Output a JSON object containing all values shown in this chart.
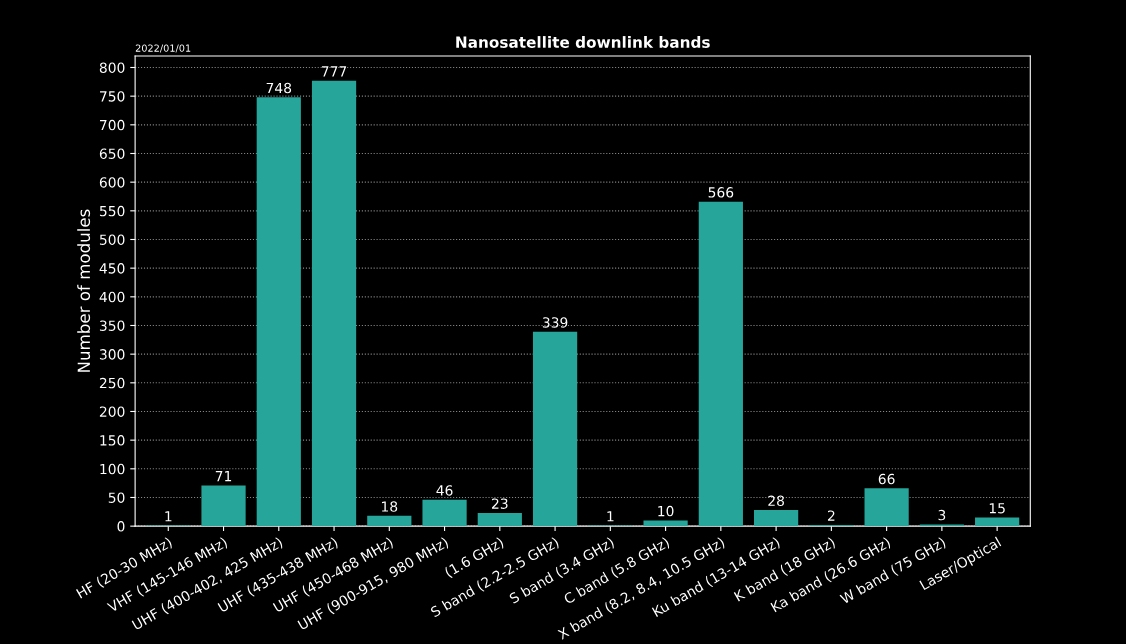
{
  "chart_data": {
    "type": "bar",
    "title": "Nanosatellite downlink bands",
    "ylabel": "Number of modules",
    "annotations": [
      "2022/01/01"
    ],
    "categories": [
      "HF (20-30 MHz)",
      "VHF (145-146 MHz)",
      "UHF (400-402, 425 MHz)",
      "UHF (435-438 MHz)",
      "UHF (450-468 MHz)",
      "UHF (900-915, 980 MHz)",
      "(1.6 GHz)",
      "S band (2.2-2.5 GHz)",
      "S band (3.4 GHz)",
      "C band (5.8 GHz)",
      "X band (8.2, 8.4, 10.5 GHz)",
      "Ku band (13-14 GHz)",
      "K band (18 GHz)",
      "Ka band (26.6 GHz)",
      "W band (75 GHz)",
      "Laser/Optical"
    ],
    "values": [
      1,
      71,
      748,
      777,
      18,
      46,
      23,
      339,
      1,
      10,
      566,
      28,
      2,
      66,
      3,
      15
    ],
    "color": "#26a69a",
    "ylim": [
      0,
      820
    ],
    "yticks": [
      0,
      50,
      100,
      150,
      200,
      250,
      300,
      350,
      400,
      450,
      500,
      550,
      600,
      650,
      700,
      750,
      800
    ],
    "grid": "y",
    "data_labels": true,
    "legend": false
  }
}
